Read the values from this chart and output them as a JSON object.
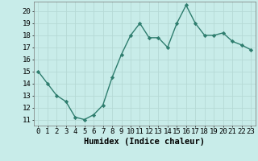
{
  "x": [
    0,
    1,
    2,
    3,
    4,
    5,
    6,
    7,
    8,
    9,
    10,
    11,
    12,
    13,
    14,
    15,
    16,
    17,
    18,
    19,
    20,
    21,
    22,
    23
  ],
  "y": [
    15,
    14,
    13,
    12.5,
    11.2,
    11,
    11.4,
    12.2,
    14.5,
    16.4,
    18,
    19,
    17.8,
    17.8,
    17,
    19,
    20.5,
    19,
    18,
    18,
    18.2,
    17.5,
    17.2,
    16.8
  ],
  "line_color": "#2e7d6e",
  "bg_color": "#c8ece9",
  "grid_color": "#b5d9d5",
  "xlabel": "Humidex (Indice chaleur)",
  "xlim": [
    -0.5,
    23.5
  ],
  "ylim": [
    10.5,
    20.8
  ],
  "yticks": [
    11,
    12,
    13,
    14,
    15,
    16,
    17,
    18,
    19,
    20
  ],
  "xticks": [
    0,
    1,
    2,
    3,
    4,
    5,
    6,
    7,
    8,
    9,
    10,
    11,
    12,
    13,
    14,
    15,
    16,
    17,
    18,
    19,
    20,
    21,
    22,
    23
  ],
  "marker": "D",
  "marker_size": 2.2,
  "linewidth": 1.0,
  "xlabel_fontsize": 7.5,
  "tick_fontsize": 6.5
}
